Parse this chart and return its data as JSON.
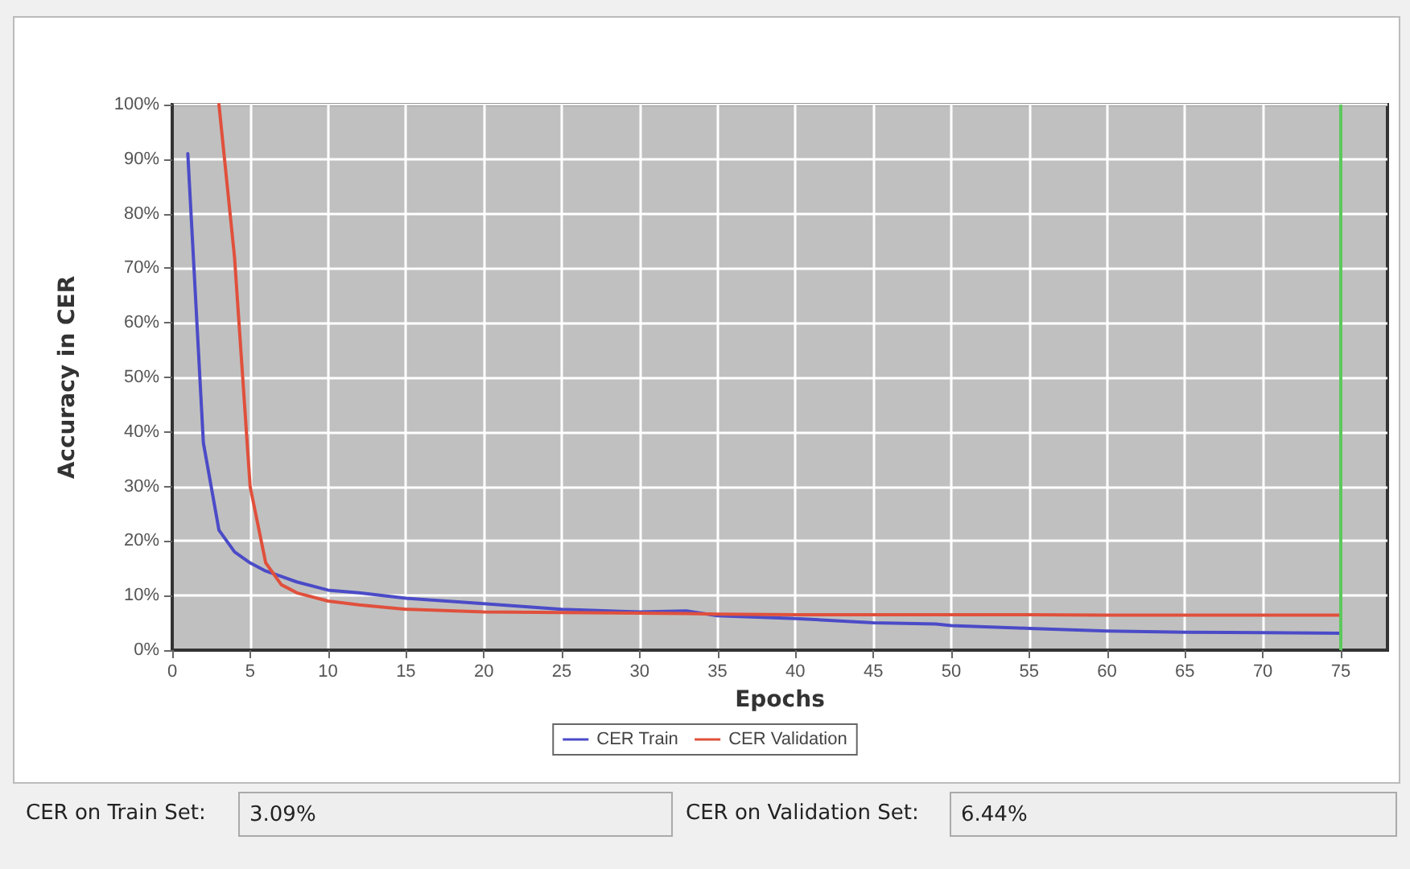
{
  "chart_data": {
    "type": "line",
    "xlabel": "Epochs",
    "ylabel": "Accuracy in CER",
    "x": [
      1,
      2,
      3,
      4,
      5,
      6,
      7,
      8,
      10,
      12,
      15,
      20,
      25,
      30,
      33,
      35,
      40,
      45,
      49,
      50,
      55,
      60,
      65,
      70,
      75
    ],
    "series": [
      {
        "name": "CER Train",
        "color": "#4b4bc8",
        "values": [
          91,
          38,
          22,
          18,
          16,
          14.5,
          13.5,
          12.5,
          11,
          10.5,
          9.5,
          8.5,
          7.5,
          7,
          7.2,
          6.3,
          5.8,
          5,
          4.8,
          4.5,
          4,
          3.5,
          3.3,
          3.2,
          3.1
        ]
      },
      {
        "name": "CER Validation",
        "color": "#e0503c",
        "values": [
          null,
          null,
          100,
          72,
          30,
          16,
          12,
          10.5,
          9,
          8.3,
          7.5,
          7,
          6.9,
          6.8,
          6.7,
          6.6,
          6.5,
          6.5,
          6.5,
          6.5,
          6.5,
          6.4,
          6.4,
          6.4,
          6.4
        ]
      }
    ],
    "xlim": [
      0,
      78
    ],
    "xticks": [
      0,
      5,
      10,
      15,
      20,
      25,
      30,
      35,
      40,
      45,
      50,
      55,
      60,
      65,
      70,
      75
    ],
    "ylim": [
      0,
      100
    ],
    "yticks": [
      {
        "value": 0,
        "label": "0%"
      },
      {
        "value": 10,
        "label": "10%"
      },
      {
        "value": 20,
        "label": "20%"
      },
      {
        "value": 30,
        "label": "30%"
      },
      {
        "value": 40,
        "label": "40%"
      },
      {
        "value": 50,
        "label": "50%"
      },
      {
        "value": 60,
        "label": "60%"
      },
      {
        "value": 70,
        "label": "70%"
      },
      {
        "value": 80,
        "label": "80%"
      },
      {
        "value": 90,
        "label": "90%"
      },
      {
        "value": 100,
        "label": "100%"
      }
    ],
    "ref_lines": [
      {
        "axis": "x",
        "value": 75,
        "color": "#5cc85c"
      }
    ],
    "grid": true,
    "legend": "bottom",
    "marker": "none",
    "line_style": "solid",
    "annotations": [
      "CER on Train Set:",
      "3.09%",
      "CER on Validation Set:",
      "6.44%"
    ]
  }
}
